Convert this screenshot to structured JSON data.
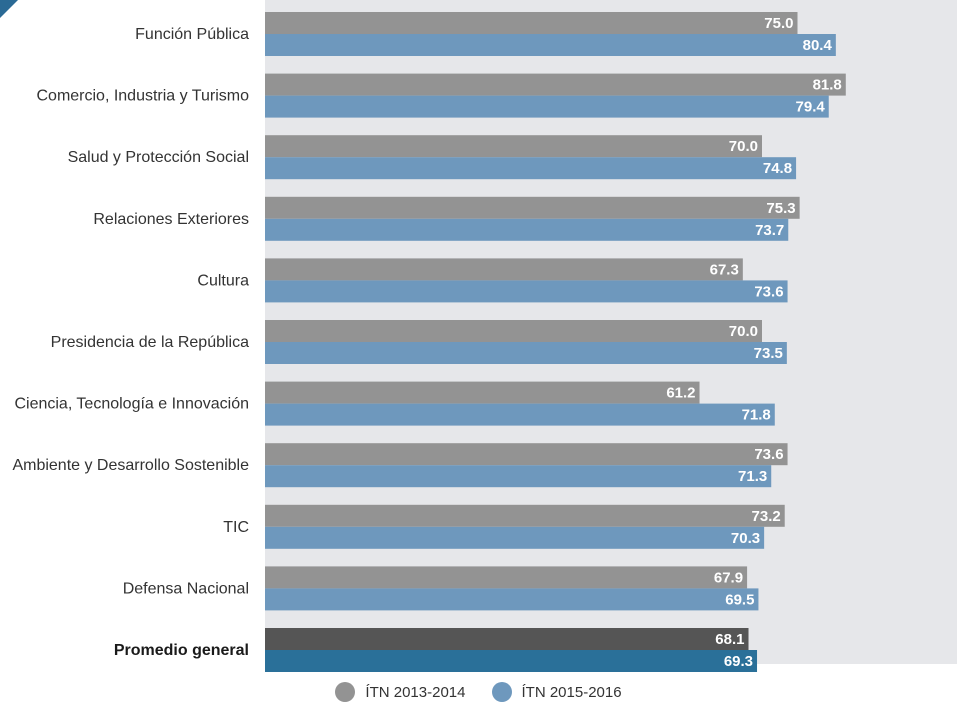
{
  "chart_data": {
    "type": "bar",
    "orientation": "horizontal",
    "categories": [
      "Función Pública",
      "Comercio, Industria y Turismo",
      "Salud y Protección Social",
      "Relaciones Exteriores",
      "Cultura",
      "Presidencia de la República",
      "Ciencia, Tecnología e Innovación",
      "Ambiente y Desarrollo Sostenible",
      "TIC",
      "Defensa Nacional",
      "Promedio general"
    ],
    "highlight_category": "Promedio general",
    "series": [
      {
        "name": "ÍTN 2013-2014",
        "color": "#939393",
        "highlight_color": "#555555",
        "values": [
          75.0,
          81.8,
          70.0,
          75.3,
          67.3,
          70.0,
          61.2,
          73.6,
          73.2,
          67.9,
          68.1
        ]
      },
      {
        "name": "ÍTN 2015-2016",
        "color": "#6e98bd",
        "highlight_color": "#2a7099",
        "values": [
          80.4,
          79.4,
          74.8,
          73.7,
          73.6,
          73.5,
          71.8,
          71.3,
          70.3,
          69.5,
          69.3
        ]
      }
    ],
    "xlim": [
      0,
      100
    ],
    "grid": false,
    "legend_position": "bottom"
  },
  "colors": {
    "plot_background": "#e6e7ea",
    "corner_accent": "#2a6a95"
  }
}
